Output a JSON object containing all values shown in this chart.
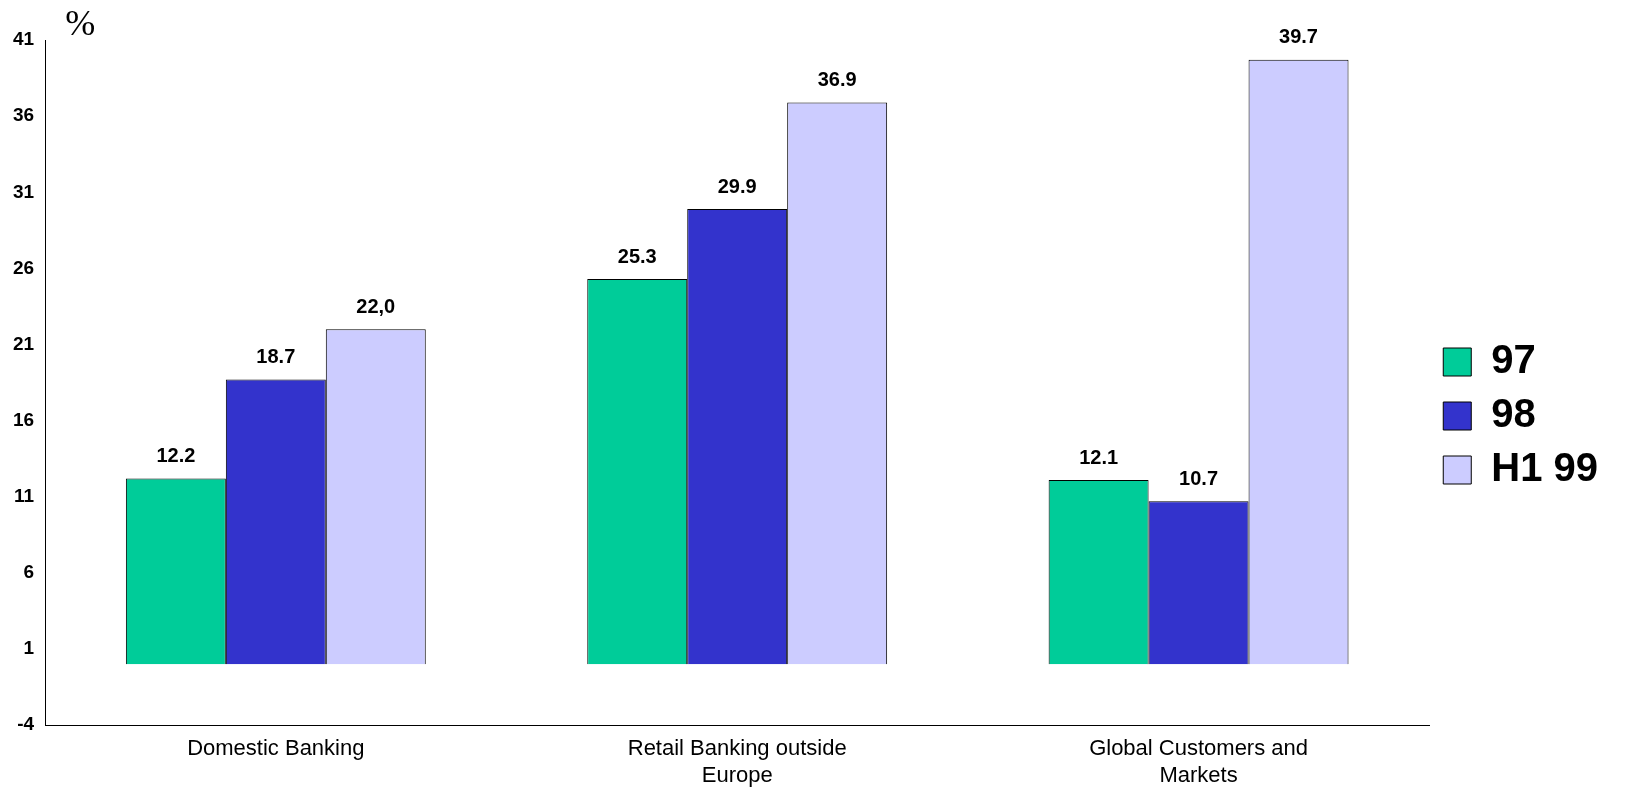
{
  "chart_data": {
    "type": "bar",
    "ylabel": "%",
    "categories": [
      "Domestic Banking",
      "Retail Banking outside Europe",
      "Global Customers and Markets"
    ],
    "series": [
      {
        "name": "97",
        "color": "#00cc99",
        "values": [
          12.2,
          25.3,
          12.1
        ],
        "value_labels": [
          "12.2",
          "25.3",
          "12.1"
        ]
      },
      {
        "name": "98",
        "color": "#3333cc",
        "values": [
          18.7,
          29.9,
          10.7
        ],
        "value_labels": [
          "18.7",
          "29.9",
          "10.7"
        ]
      },
      {
        "name": "H1 99",
        "color": "#ccccff",
        "values": [
          22.0,
          36.9,
          39.7
        ],
        "value_labels": [
          "22,0",
          "36.9",
          "39.7"
        ]
      }
    ],
    "ylim": [
      -4,
      41
    ],
    "yticks": [
      -4,
      1,
      6,
      11,
      16,
      21,
      26,
      31,
      36,
      41
    ],
    "grid": false,
    "legend": "right"
  }
}
